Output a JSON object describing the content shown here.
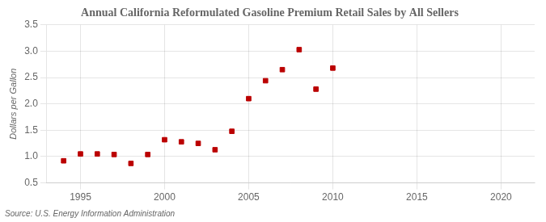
{
  "chart_data": {
    "type": "scatter",
    "title": "Annual California Reformulated Gasoline Premium Retail Sales by All Sellers",
    "ylabel": "Dollars per Gallon",
    "annotation": "Source: U.S. Energy Information Administration",
    "x": [
      1994,
      1995,
      1996,
      1997,
      1998,
      1999,
      2000,
      2001,
      2002,
      2003,
      2004,
      2005,
      2006,
      2007,
      2008,
      2009,
      2010
    ],
    "values": [
      0.92,
      1.05,
      1.05,
      1.04,
      0.87,
      1.04,
      1.32,
      1.28,
      1.25,
      1.13,
      1.48,
      2.1,
      2.44,
      2.65,
      3.03,
      2.28,
      2.68
    ],
    "color": "#bb0000",
    "marker": "square",
    "xlim": [
      1993,
      2022
    ],
    "xticks": [
      1995,
      2000,
      2005,
      2010,
      2015,
      2020
    ],
    "ylim": [
      0.5,
      3.5
    ],
    "yticks": [
      0.5,
      {
        "value": 1,
        "label": "1.0"
      },
      1.5,
      {
        "value": 2,
        "label": "2.0"
      },
      2.5,
      {
        "value": 3,
        "label": "3.0"
      },
      3.5
    ],
    "grid": true
  }
}
